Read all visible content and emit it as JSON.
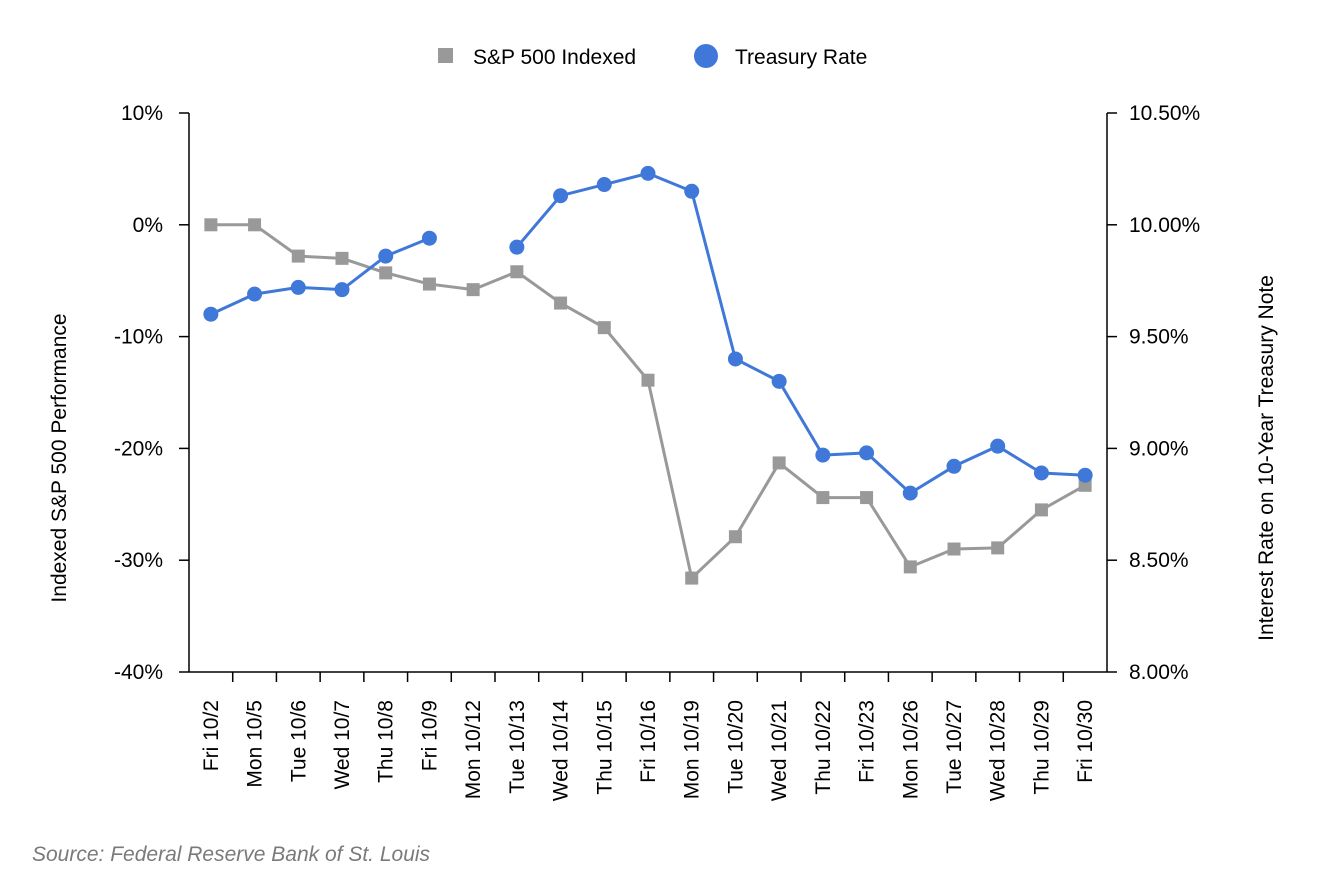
{
  "chart_data": {
    "type": "line",
    "categories": [
      "Fri 10/2",
      "Mon 10/5",
      "Tue 10/6",
      "Wed 10/7",
      "Thu 10/8",
      "Fri 10/9",
      "Mon 10/12",
      "Tue 10/13",
      "Wed 10/14",
      "Thu 10/15",
      "Fri 10/16",
      "Mon 10/19",
      "Tue 10/20",
      "Wed 10/21",
      "Thu 10/22",
      "Fri 10/23",
      "Mon 10/26",
      "Tue 10/27",
      "Wed 10/28",
      "Thu 10/29",
      "Fri 10/30"
    ],
    "series": [
      {
        "name": "S&P 500 Indexed",
        "axis": "left",
        "marker": "square",
        "color": "#999999",
        "values": [
          0.0,
          0.0,
          -2.8,
          -3.0,
          -4.3,
          -5.3,
          -5.8,
          -4.2,
          -7.0,
          -9.2,
          -13.9,
          -31.6,
          -27.9,
          -21.3,
          -24.4,
          -24.4,
          -30.6,
          -29.0,
          -28.9,
          -25.5,
          -23.3
        ]
      },
      {
        "name": "Treasury Rate",
        "axis": "right",
        "marker": "circle",
        "color": "#3f78d8",
        "values": [
          9.6,
          9.69,
          9.72,
          9.71,
          9.86,
          9.94,
          null,
          9.9,
          10.13,
          10.18,
          10.23,
          10.15,
          9.4,
          9.3,
          8.97,
          8.98,
          8.8,
          8.92,
          9.01,
          8.89,
          8.88
        ]
      }
    ],
    "y_left": {
      "label": "Indexed S&P 500 Performance",
      "ylim": [
        -40,
        10
      ],
      "ticks": [
        10,
        0,
        -10,
        -20,
        -30,
        -40
      ],
      "tick_labels": [
        "10%",
        "0%",
        "-10%",
        "-20%",
        "-30%",
        "-40%"
      ]
    },
    "y_right": {
      "label": "Interest Rate on 10-Year Treasury Note",
      "ylim": [
        8.0,
        10.5
      ],
      "ticks": [
        10.5,
        10.0,
        9.5,
        9.0,
        8.5,
        8.0
      ],
      "tick_labels": [
        "10.50%",
        "10.00%",
        "9.50%",
        "9.00%",
        "8.50%",
        "8.00%"
      ]
    },
    "legend": [
      "S&P 500 Indexed",
      "Treasury Rate"
    ],
    "legend_position": "top-center",
    "grid": false,
    "source": "Source: Federal Reserve Bank of St. Louis"
  }
}
